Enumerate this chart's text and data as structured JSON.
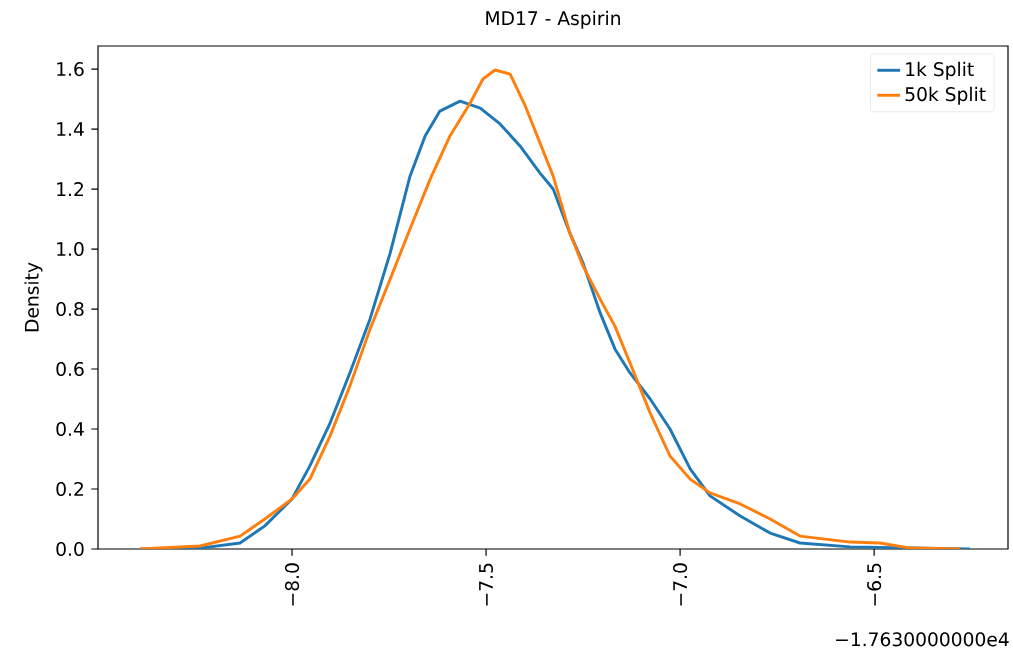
{
  "chart_data": {
    "type": "line",
    "title": "MD17 - Aspirin",
    "ylabel": "Density",
    "annotations": [
      "−1.7630000000e4"
    ],
    "xlim": [
      -8.5,
      -6.155
    ],
    "ylim": [
      0,
      1.677
    ],
    "xticks": [
      {
        "value": -8.0,
        "label": "−8.0"
      },
      {
        "value": -7.5,
        "label": "−7.5"
      },
      {
        "value": -7.0,
        "label": "−7.0"
      },
      {
        "value": -6.5,
        "label": "−6.5"
      }
    ],
    "yticks": [
      {
        "value": 0,
        "label": "0.0"
      },
      {
        "value": 0.2,
        "label": "0.2"
      },
      {
        "value": 0.4,
        "label": "0.4"
      },
      {
        "value": 0.6,
        "label": "0.6"
      },
      {
        "value": 0.8,
        "label": "0.8"
      },
      {
        "value": 1.0,
        "label": "1.0"
      },
      {
        "value": 1.2,
        "label": "1.2"
      },
      {
        "value": 1.4,
        "label": "1.4"
      },
      {
        "value": 1.6,
        "label": "1.6"
      }
    ],
    "grid": false,
    "legend": "top right",
    "marker": "none",
    "line_style": "solid",
    "series": [
      {
        "name": "1k Split",
        "color": "#1f77b4",
        "x": [
          -8.392,
          -8.237,
          -8.134,
          -8.07,
          -8.0,
          -7.954,
          -7.902,
          -7.851,
          -7.799,
          -7.747,
          -7.696,
          -7.657,
          -7.619,
          -7.567,
          -7.515,
          -7.464,
          -7.412,
          -7.361,
          -7.327,
          -7.284,
          -7.25,
          -7.206,
          -7.168,
          -7.129,
          -7.077,
          -7.026,
          -6.974,
          -6.923,
          -6.845,
          -6.768,
          -6.691,
          -6.562,
          -6.253
        ],
        "values": [
          0,
          0.003,
          0.02,
          0.077,
          0.167,
          0.277,
          0.42,
          0.587,
          0.767,
          0.987,
          1.243,
          1.377,
          1.46,
          1.493,
          1.47,
          1.417,
          1.343,
          1.253,
          1.2,
          1.053,
          0.953,
          0.787,
          0.667,
          0.587,
          0.5,
          0.4,
          0.267,
          0.177,
          0.11,
          0.053,
          0.02,
          0.007,
          0
        ]
      },
      {
        "name": "50k Split",
        "color": "#ff7f0e",
        "x": [
          -8.392,
          -8.237,
          -8.134,
          -8.07,
          -8.0,
          -7.954,
          -7.902,
          -7.851,
          -7.799,
          -7.747,
          -7.696,
          -7.644,
          -7.593,
          -7.541,
          -7.508,
          -7.477,
          -7.438,
          -7.399,
          -7.327,
          -7.284,
          -7.25,
          -7.206,
          -7.168,
          -7.129,
          -7.077,
          -7.026,
          -6.974,
          -6.923,
          -6.845,
          -6.768,
          -6.691,
          -6.562,
          -6.485,
          -6.407,
          -6.278
        ],
        "values": [
          0,
          0.01,
          0.043,
          0.1,
          0.167,
          0.233,
          0.377,
          0.543,
          0.733,
          0.9,
          1.067,
          1.233,
          1.377,
          1.487,
          1.567,
          1.597,
          1.583,
          1.477,
          1.243,
          1.053,
          0.943,
          0.833,
          0.743,
          0.62,
          0.453,
          0.31,
          0.233,
          0.187,
          0.15,
          0.1,
          0.043,
          0.023,
          0.02,
          0.003,
          0
        ]
      }
    ]
  }
}
